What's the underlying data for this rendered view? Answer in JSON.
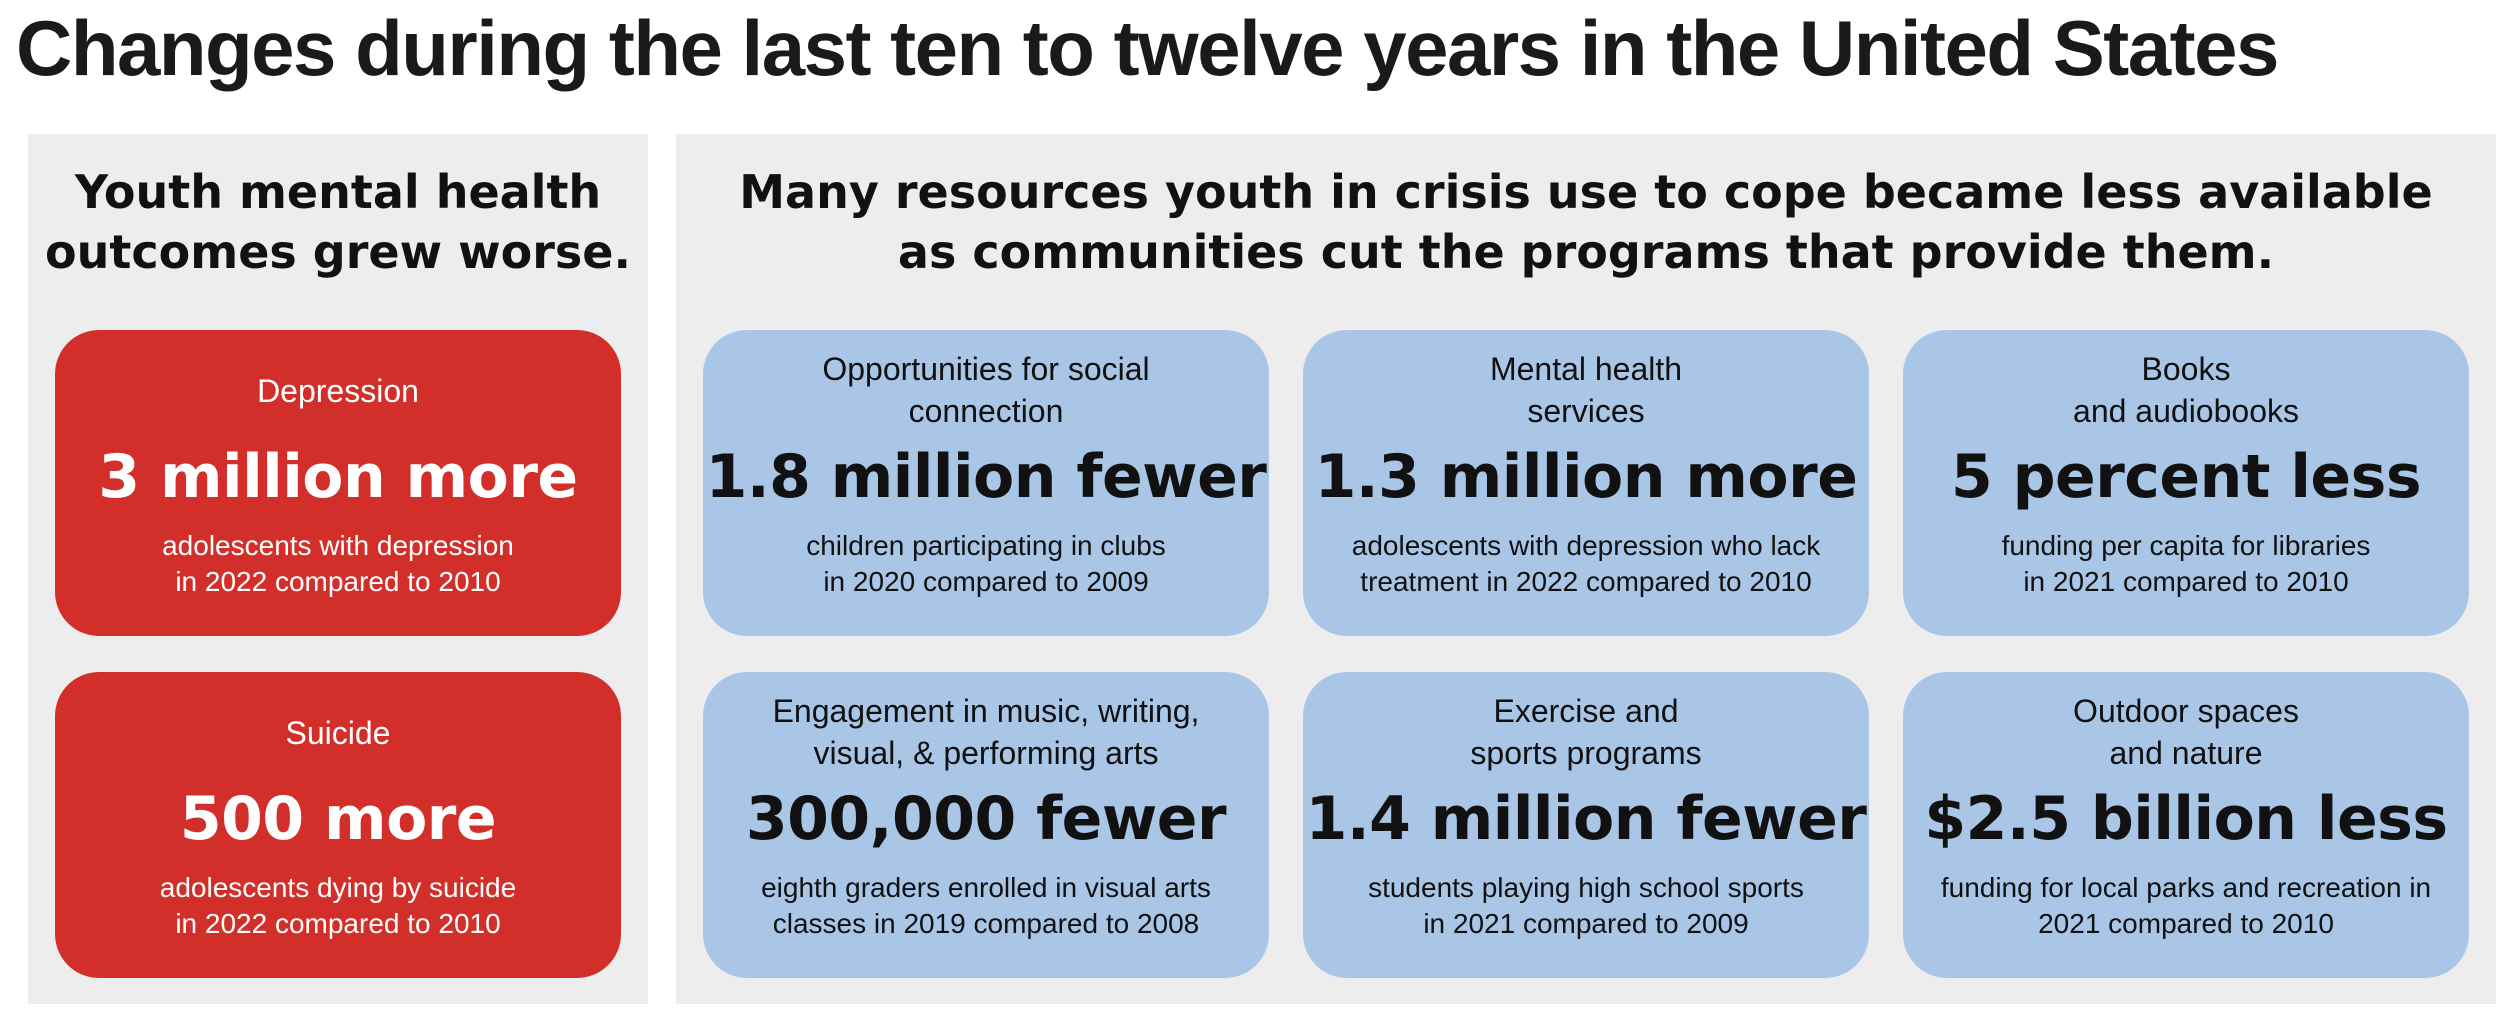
{
  "title": "Changes during the last ten to twelve years in the United States",
  "left_panel": {
    "heading_lines": [
      "Youth mental health",
      "outcomes grew worse."
    ],
    "cards": [
      {
        "label_lines": [
          "Depression"
        ],
        "stat": "3 million more",
        "desc_lines": [
          "adolescents with depression",
          "in 2022 compared to 2010"
        ]
      },
      {
        "label_lines": [
          "Suicide"
        ],
        "stat": "500 more",
        "desc_lines": [
          "adolescents dying by suicide",
          "in 2022 compared to 2010"
        ]
      }
    ]
  },
  "right_panel": {
    "heading_lines": [
      "Many resources youth in crisis use to cope became less available",
      "as communities cut the programs that provide them."
    ],
    "cards": [
      {
        "label_lines": [
          "Opportunities for social",
          "connection"
        ],
        "stat": "1.8 million fewer",
        "desc_lines": [
          "children participating in clubs",
          "in 2020 compared to 2009"
        ]
      },
      {
        "label_lines": [
          "Mental health",
          "services"
        ],
        "stat": "1.3 million more",
        "desc_lines": [
          "adolescents with depression who lack",
          "treatment in 2022 compared to 2010"
        ]
      },
      {
        "label_lines": [
          "Books",
          "and audiobooks"
        ],
        "stat": "5 percent less",
        "desc_lines": [
          "funding per capita for libraries",
          "in 2021 compared to 2010"
        ]
      },
      {
        "label_lines": [
          "Engagement in music, writing,",
          "visual, & performing arts"
        ],
        "stat": "300,000 fewer",
        "desc_lines": [
          "eighth graders enrolled in visual arts",
          "classes in 2019 compared to 2008"
        ]
      },
      {
        "label_lines": [
          "Exercise and",
          "sports programs"
        ],
        "stat": "1.4 million fewer",
        "desc_lines": [
          "students playing high school sports",
          "in 2021 compared to 2009"
        ]
      },
      {
        "label_lines": [
          "Outdoor spaces",
          "and nature"
        ],
        "stat": "$2.5 billion less",
        "desc_lines": [
          "funding for local parks and recreation in",
          "2021 compared to 2010"
        ]
      }
    ]
  },
  "colors": {
    "outcome_card": "#d32f2a",
    "resource_card": "#a9c6e6",
    "panel_background": "#ededed"
  }
}
